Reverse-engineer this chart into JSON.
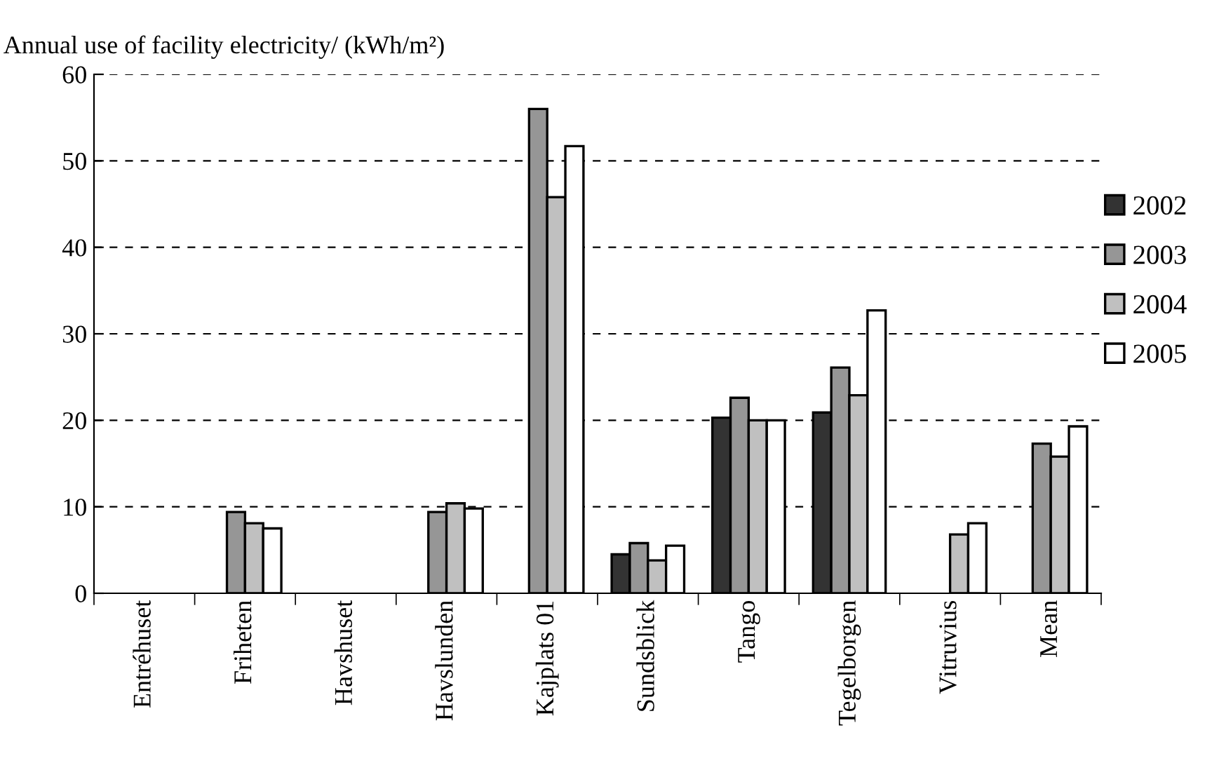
{
  "chart_data": {
    "type": "bar",
    "ylabel": "Annual use of facility electricity/ (kWh/m²)",
    "categories": [
      "Entréhuset",
      "Friheten",
      "Havshuset",
      "Havslunden",
      "Kajplats 01",
      "Sundsblick",
      "Tango",
      "Tegelborgen",
      "Vitruvius",
      "Mean"
    ],
    "series": [
      {
        "name": "2002",
        "color": "#333333",
        "values": [
          null,
          null,
          null,
          null,
          null,
          4.5,
          20.3,
          20.9,
          null,
          null
        ]
      },
      {
        "name": "2003",
        "color": "#969696",
        "values": [
          null,
          9.4,
          null,
          9.4,
          56.0,
          5.8,
          22.6,
          26.1,
          null,
          17.3
        ]
      },
      {
        "name": "2004",
        "color": "#c0c0c0",
        "values": [
          null,
          8.1,
          null,
          10.4,
          45.8,
          3.8,
          20.0,
          22.9,
          6.8,
          15.8
        ]
      },
      {
        "name": "2005",
        "color": "#ffffff",
        "values": [
          null,
          7.5,
          null,
          9.8,
          51.7,
          5.5,
          20.0,
          32.7,
          8.1,
          19.3
        ]
      }
    ],
    "ylim": [
      0,
      60
    ],
    "yticks": [
      0,
      10,
      20,
      30,
      40,
      50,
      60
    ],
    "grid": "y",
    "legend": "right",
    "line_style": "dashed"
  }
}
